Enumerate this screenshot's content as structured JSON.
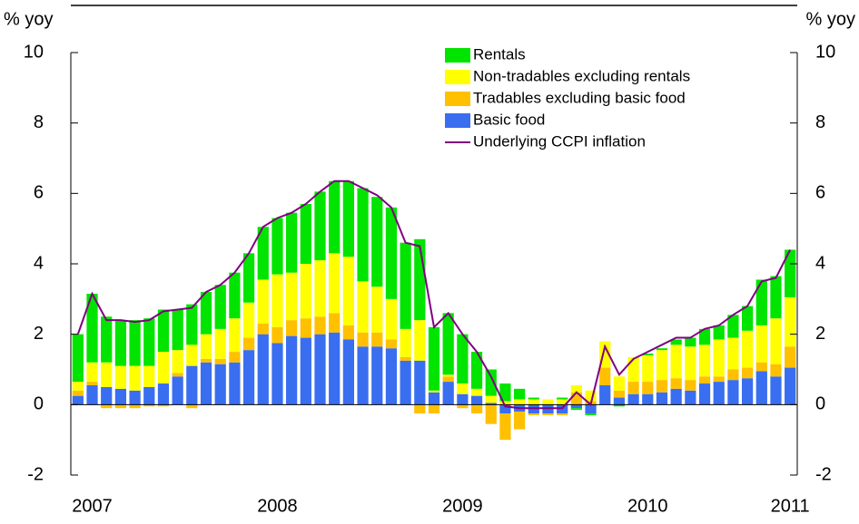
{
  "chart_data": {
    "type": "bar",
    "stacked": true,
    "y_label": "% yoy",
    "y2_label": "% yoy",
    "categories": [
      null,
      "2007",
      null,
      null,
      null,
      null,
      null,
      null,
      null,
      null,
      null,
      null,
      null,
      null,
      "2008",
      null,
      null,
      null,
      null,
      null,
      null,
      null,
      null,
      null,
      null,
      null,
      null,
      "2009",
      null,
      null,
      null,
      null,
      null,
      null,
      null,
      null,
      null,
      null,
      null,
      null,
      "2010",
      null,
      null,
      null,
      null,
      null,
      null,
      null,
      null,
      null,
      "2011"
    ],
    "series": [
      {
        "name": "Rentals",
        "color": "#00e400",
        "values": [
          1.35,
          1.95,
          1.3,
          1.3,
          1.3,
          1.35,
          1.2,
          1.15,
          1.15,
          1.2,
          1.25,
          1.3,
          1.4,
          1.5,
          1.6,
          1.7,
          1.7,
          1.95,
          2.05,
          2.15,
          2.65,
          2.55,
          2.6,
          2.45,
          2.3,
          1.8,
          1.75,
          1.4,
          1.05,
          0.75,
          0.5,
          0.3,
          0.05,
          0.0,
          0.05,
          -0.05,
          -0.05,
          0.0,
          -0.05,
          0.0,
          0.05,
          0.05,
          0.15,
          0.25,
          0.45,
          0.4,
          0.65,
          0.7,
          1.3,
          1.2,
          1.35
        ]
      },
      {
        "name": "Non-tradables excluding rentals",
        "color": "#ffff00",
        "values": [
          0.25,
          0.55,
          0.7,
          0.65,
          0.7,
          0.6,
          0.9,
          0.65,
          0.6,
          0.7,
          0.85,
          0.95,
          1.0,
          1.25,
          1.5,
          1.35,
          1.55,
          1.6,
          1.7,
          1.95,
          1.45,
          1.3,
          1.15,
          0.8,
          1.15,
          0.05,
          0.05,
          0.3,
          0.2,
          0.2,
          0.1,
          0.15,
          0.15,
          0.15,
          0.15,
          0.2,
          0.3,
          0.75,
          0.4,
          0.7,
          0.75,
          0.85,
          0.95,
          0.95,
          0.9,
          1.05,
          0.9,
          1.05,
          1.05,
          1.3,
          1.4
        ]
      },
      {
        "name": "Tradables excluding basic food",
        "color": "#ffc000",
        "values": [
          0.15,
          0.1,
          -0.1,
          -0.1,
          -0.1,
          -0.05,
          -0.05,
          0.1,
          -0.1,
          0.1,
          0.15,
          0.3,
          0.35,
          0.3,
          0.45,
          0.45,
          0.55,
          0.5,
          0.55,
          0.4,
          0.4,
          0.4,
          0.25,
          0.1,
          -0.25,
          -0.25,
          0.15,
          -0.1,
          -0.25,
          -0.55,
          -0.75,
          -0.5,
          -0.05,
          -0.05,
          -0.05,
          0.35,
          0.1,
          0.5,
          0.2,
          0.35,
          0.35,
          0.35,
          0.3,
          0.3,
          0.2,
          0.15,
          0.3,
          0.3,
          0.25,
          0.35,
          0.6
        ]
      },
      {
        "name": "Basic food",
        "color": "#3a6ef0",
        "values": [
          0.25,
          0.55,
          0.5,
          0.45,
          0.4,
          0.5,
          0.6,
          0.8,
          1.1,
          1.2,
          1.15,
          1.2,
          1.55,
          2.0,
          1.75,
          1.95,
          1.9,
          2.0,
          2.05,
          1.85,
          1.65,
          1.65,
          1.6,
          1.25,
          1.25,
          0.35,
          0.65,
          0.3,
          0.25,
          0.05,
          -0.25,
          -0.2,
          -0.25,
          -0.25,
          -0.25,
          -0.1,
          -0.25,
          0.55,
          0.2,
          0.3,
          0.3,
          0.35,
          0.45,
          0.4,
          0.6,
          0.65,
          0.7,
          0.75,
          0.95,
          0.8,
          1.05
        ]
      },
      {
        "name": "Underlying CCPI inflation",
        "type": "line",
        "color": "#800080",
        "values": [
          2.0,
          3.15,
          2.4,
          2.4,
          2.35,
          2.4,
          2.65,
          2.7,
          2.75,
          3.2,
          3.4,
          3.75,
          4.3,
          5.05,
          5.3,
          5.45,
          5.7,
          6.05,
          6.35,
          6.35,
          6.15,
          5.95,
          5.6,
          4.6,
          4.5,
          2.2,
          2.6,
          2.0,
          1.5,
          0.8,
          -0.05,
          -0.1,
          -0.1,
          -0.1,
          -0.1,
          0.35,
          0.0,
          1.65,
          0.85,
          1.3,
          1.5,
          1.7,
          1.9,
          1.9,
          2.15,
          2.25,
          2.55,
          2.8,
          3.5,
          3.6,
          4.4
        ]
      }
    ],
    "ylim": [
      -2,
      10
    ],
    "yticks": [
      -2,
      0,
      2,
      4,
      6,
      8,
      10
    ],
    "y2lim": [
      -2,
      10
    ],
    "y2ticks": [
      -2,
      0,
      2,
      4,
      6,
      8,
      10
    ],
    "legend": "upper right"
  }
}
